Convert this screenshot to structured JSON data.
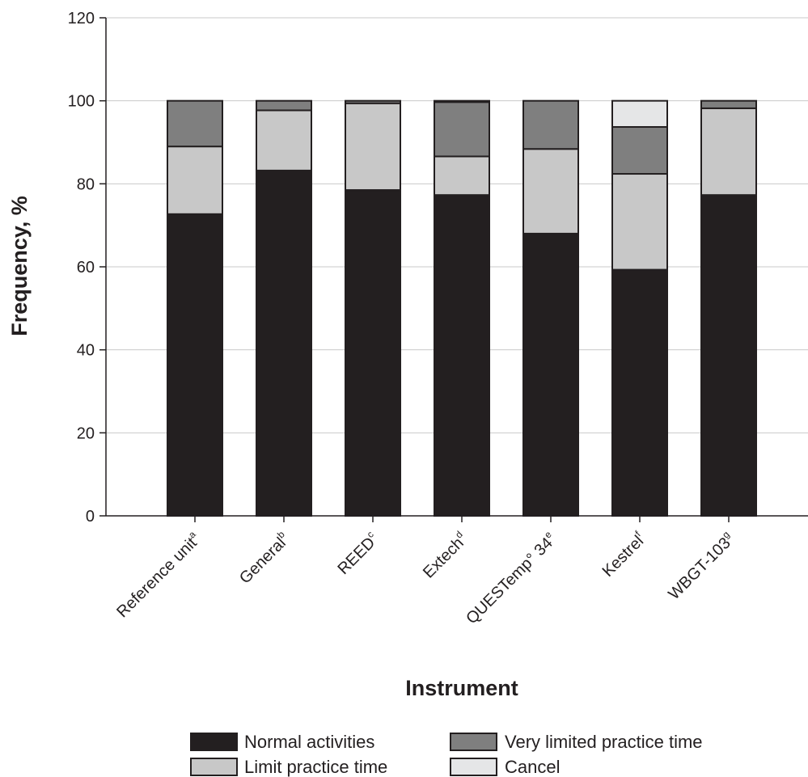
{
  "chart_data": {
    "type": "bar",
    "stacked": true,
    "title": "",
    "xlabel": "Instrument",
    "ylabel": "Frequency, %",
    "ylim": [
      0,
      120
    ],
    "yticks": [
      "0",
      "20",
      "40",
      "60",
      "80",
      "100",
      "120"
    ],
    "grid": true,
    "legend_position": "bottom",
    "categories": [
      {
        "name": "Reference unit",
        "sup": "a"
      },
      {
        "name": "General",
        "sup": "b"
      },
      {
        "name": "REED",
        "sup": "c"
      },
      {
        "name": "Extech",
        "sup": "d"
      },
      {
        "name": "QUESTemp° 34",
        "sup": "e"
      },
      {
        "name": "Kestrel",
        "sup": "f"
      },
      {
        "name": "WBGT-103",
        "sup": "g"
      }
    ],
    "series": [
      {
        "name": "Normal activities",
        "color": "#231f20",
        "values": [
          72.7,
          83.2,
          78.5,
          77.3,
          68.0,
          59.3,
          77.3
        ]
      },
      {
        "name": "Limit practice time",
        "color": "#c8c8c8",
        "values": [
          16.3,
          14.5,
          20.9,
          9.3,
          20.4,
          23.1,
          20.9
        ]
      },
      {
        "name": "Very limited practice time",
        "color": "#7f7f7f",
        "values": [
          11.0,
          2.3,
          0.6,
          13.1,
          11.6,
          11.3,
          1.8
        ]
      },
      {
        "name": "Cancel",
        "color": "#e5e6e7",
        "values": [
          0,
          0,
          0,
          0.3,
          0,
          6.3,
          0
        ]
      }
    ]
  },
  "legend": [
    {
      "label": "Normal activities",
      "color": "#231f20"
    },
    {
      "label": "Very limited practice time",
      "color": "#7f7f7f"
    },
    {
      "label": "Limit practice time",
      "color": "#c8c8c8"
    },
    {
      "label": "Cancel",
      "color": "#e5e6e7"
    }
  ]
}
